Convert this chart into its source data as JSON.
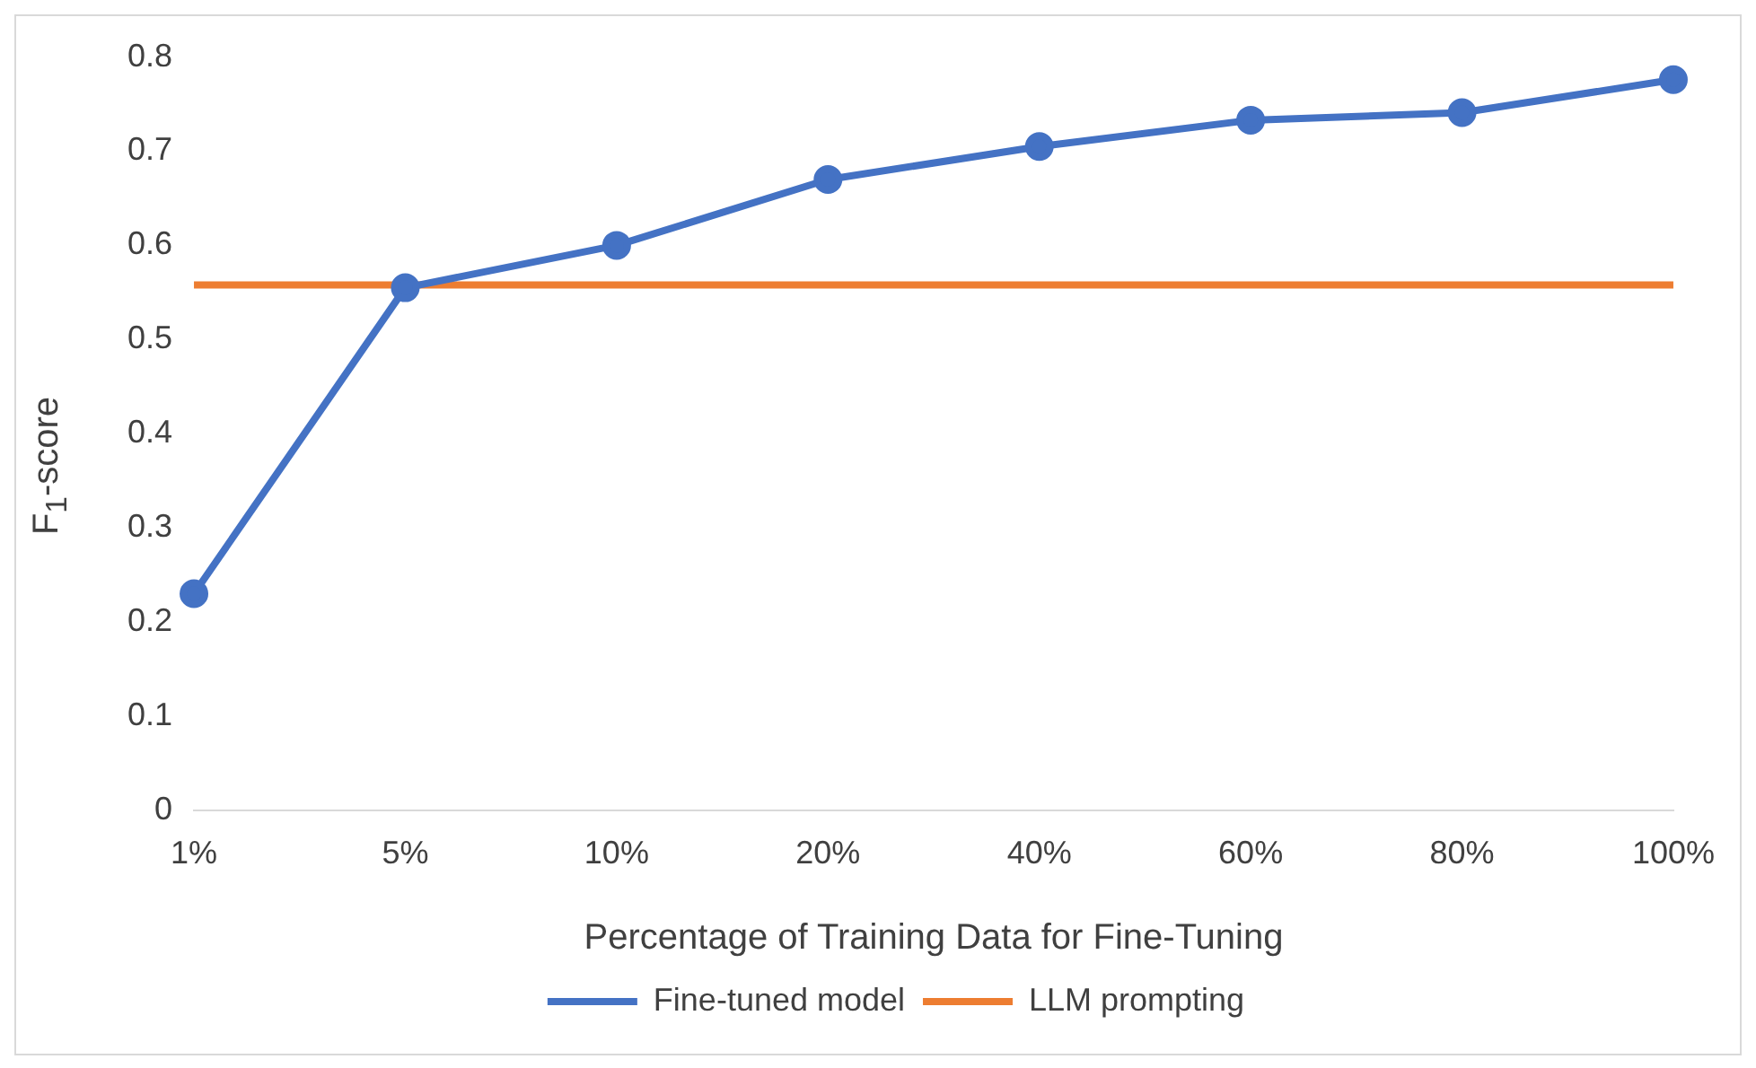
{
  "chart_data": {
    "type": "line",
    "xlabel": "Percentage of Training Data for Fine-Tuning",
    "ylabel": "F$_{1}$-score",
    "categories": [
      "1%",
      "5%",
      "10%",
      "20%",
      "40%",
      "60%",
      "80%",
      "100%"
    ],
    "series": [
      {
        "name": "Fine-tuned model",
        "color": "#4472c4",
        "marker": "circle",
        "values": [
          0.23,
          0.555,
          0.6,
          0.67,
          0.705,
          0.733,
          0.741,
          0.776
        ]
      },
      {
        "name": "LLM prompting",
        "color": "#ed7d31",
        "marker": "none",
        "values": [
          0.558,
          0.558,
          0.558,
          0.558,
          0.558,
          0.558,
          0.558,
          0.558
        ]
      }
    ],
    "ylim": [
      0,
      0.8
    ],
    "yticks": [
      0,
      0.1,
      0.2,
      0.3,
      0.4,
      0.5,
      0.6,
      0.7,
      0.8
    ],
    "grid": false,
    "legend": "bottom"
  }
}
